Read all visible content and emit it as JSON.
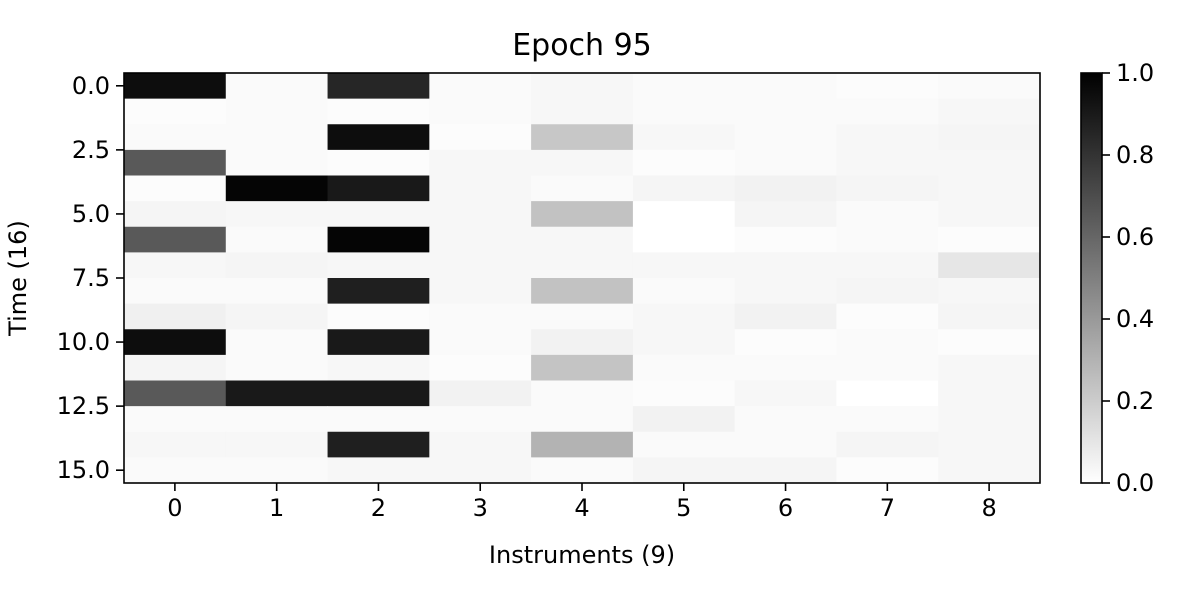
{
  "chart_data": {
    "type": "heatmap",
    "title": "Epoch 95",
    "xlabel": "Instruments (9)",
    "ylabel": "Time (16)",
    "x_ticks": [
      "0",
      "1",
      "2",
      "3",
      "4",
      "5",
      "6",
      "7",
      "8"
    ],
    "y_ticks": [
      {
        "value": 0.0,
        "label": "0.0"
      },
      {
        "value": 2.5,
        "label": "2.5"
      },
      {
        "value": 5.0,
        "label": "5.0"
      },
      {
        "value": 7.5,
        "label": "7.5"
      },
      {
        "value": 10.0,
        "label": "10.0"
      },
      {
        "value": 12.5,
        "label": "12.5"
      },
      {
        "value": 15.0,
        "label": "15.0"
      }
    ],
    "colormap": "gray_r",
    "colorbar": {
      "ticks": [
        {
          "value": 0.0,
          "label": "0.0"
        },
        {
          "value": 0.2,
          "label": "0.2"
        },
        {
          "value": 0.4,
          "label": "0.4"
        },
        {
          "value": 0.6,
          "label": "0.6"
        },
        {
          "value": 0.8,
          "label": "0.8"
        },
        {
          "value": 1.0,
          "label": "1.0"
        }
      ],
      "vmin": 0.0,
      "vmax": 1.0
    },
    "values": [
      [
        0.95,
        0.02,
        0.85,
        0.02,
        0.03,
        0.02,
        0.02,
        0.01,
        0.02
      ],
      [
        0.01,
        0.02,
        0.01,
        0.02,
        0.03,
        0.02,
        0.02,
        0.02,
        0.03
      ],
      [
        0.02,
        0.02,
        0.95,
        0.01,
        0.22,
        0.03,
        0.02,
        0.03,
        0.04
      ],
      [
        0.65,
        0.02,
        0.01,
        0.03,
        0.03,
        0.01,
        0.02,
        0.03,
        0.03
      ],
      [
        0.01,
        0.98,
        0.9,
        0.03,
        0.02,
        0.04,
        0.05,
        0.04,
        0.03
      ],
      [
        0.04,
        0.03,
        0.03,
        0.03,
        0.24,
        0.0,
        0.04,
        0.02,
        0.03
      ],
      [
        0.65,
        0.02,
        0.98,
        0.03,
        0.03,
        0.0,
        0.01,
        0.02,
        0.01
      ],
      [
        0.03,
        0.04,
        0.03,
        0.03,
        0.03,
        0.03,
        0.03,
        0.03,
        0.1
      ],
      [
        0.02,
        0.02,
        0.88,
        0.03,
        0.24,
        0.02,
        0.03,
        0.04,
        0.03
      ],
      [
        0.06,
        0.04,
        0.01,
        0.02,
        0.02,
        0.03,
        0.05,
        0.01,
        0.04
      ],
      [
        0.95,
        0.02,
        0.9,
        0.02,
        0.05,
        0.03,
        0.01,
        0.02,
        0.01
      ],
      [
        0.04,
        0.02,
        0.03,
        0.01,
        0.23,
        0.02,
        0.02,
        0.02,
        0.03
      ],
      [
        0.65,
        0.9,
        0.9,
        0.05,
        0.02,
        0.01,
        0.03,
        0.0,
        0.03
      ],
      [
        0.02,
        0.02,
        0.02,
        0.02,
        0.02,
        0.05,
        0.02,
        0.02,
        0.03
      ],
      [
        0.03,
        0.03,
        0.88,
        0.03,
        0.3,
        0.02,
        0.02,
        0.04,
        0.03
      ],
      [
        0.02,
        0.02,
        0.03,
        0.03,
        0.02,
        0.04,
        0.04,
        0.01,
        0.03
      ]
    ]
  }
}
